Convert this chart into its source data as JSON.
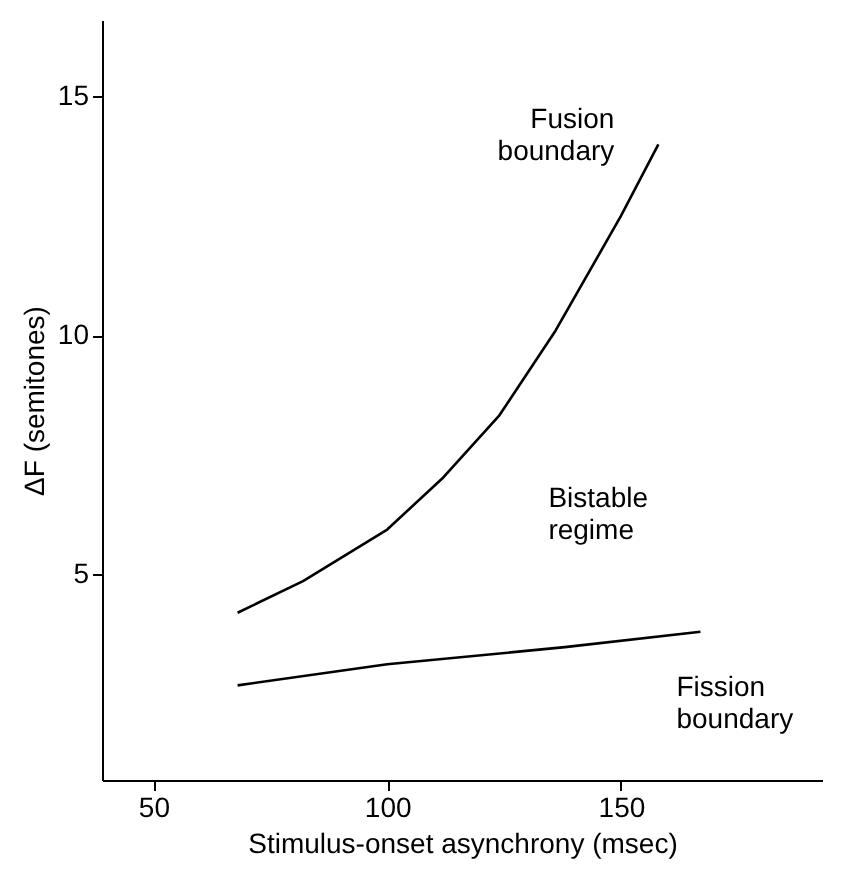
{
  "chart_data": {
    "type": "line",
    "xlabel": "Stimulus-onset asynchrony (msec)",
    "ylabel": "ΔF (semitones)",
    "xlim": [
      39,
      193
    ],
    "xticks": [
      50,
      100,
      150
    ],
    "ylim": [
      0.7,
      16.6
    ],
    "yticks": [
      5,
      10,
      15
    ],
    "grid": false,
    "legend": false,
    "marker": "none",
    "line_style": "solid",
    "series": [
      {
        "name": "Fusion boundary",
        "color": "#000000",
        "x": [
          68,
          82,
          100,
          112,
          124,
          136,
          150,
          158
        ],
        "values": [
          4.2,
          4.86,
          5.94,
          7.03,
          8.33,
          10.1,
          12.5,
          14.0
        ]
      },
      {
        "name": "Fission boundary",
        "color": "#000000",
        "x": [
          68,
          100,
          138,
          167
        ],
        "values": [
          2.68,
          3.12,
          3.48,
          3.8
        ]
      }
    ],
    "annotations": [
      "Bistable regime"
    ]
  }
}
